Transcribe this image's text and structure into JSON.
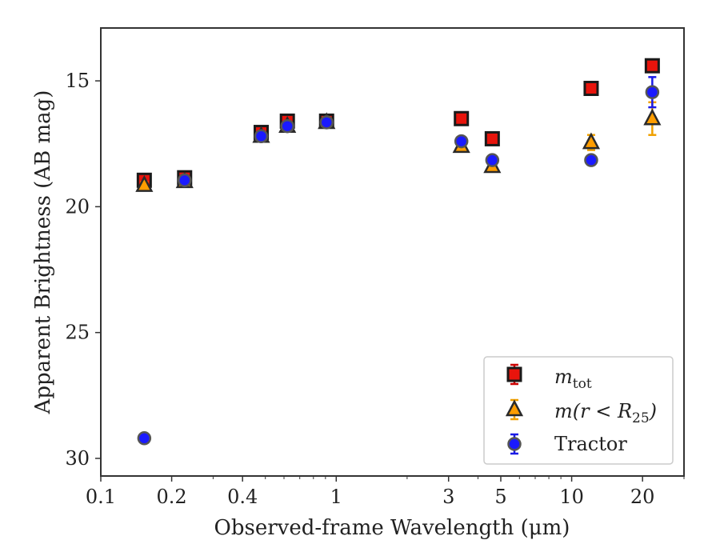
{
  "chart_data": {
    "type": "scatter",
    "xlabel": "Observed-frame Wavelength (μm)",
    "ylabel": "Apparent Brightness (AB mag)",
    "xscale": "log",
    "xlim": [
      0.1,
      30
    ],
    "ylim": [
      30.7,
      12.9
    ],
    "y_inverted": true,
    "x_ticks": [
      {
        "value": 0.1,
        "label": "0.1"
      },
      {
        "value": 0.2,
        "label": "0.2"
      },
      {
        "value": 0.4,
        "label": "0.4"
      },
      {
        "value": 1,
        "label": "1"
      },
      {
        "value": 3,
        "label": "3"
      },
      {
        "value": 5,
        "label": "5"
      },
      {
        "value": 10,
        "label": "10"
      },
      {
        "value": 20,
        "label": "20"
      }
    ],
    "y_ticks": [
      {
        "value": 15,
        "label": "15"
      },
      {
        "value": 20,
        "label": "20"
      },
      {
        "value": 25,
        "label": "25"
      },
      {
        "value": 30,
        "label": "30"
      }
    ],
    "grid": false,
    "legend_position": "lower-right",
    "series": [
      {
        "name": "m_tot",
        "legend_math": {
          "base": "m",
          "sub": "tot"
        },
        "marker": "square",
        "face_color": "#e8140c",
        "edge_color": "#1a1a1a",
        "error_color": "#cc0000",
        "points": [
          {
            "x": 0.153,
            "y": 18.95,
            "yerr": 0.15
          },
          {
            "x": 0.227,
            "y": 18.85,
            "yerr": 0.15
          },
          {
            "x": 0.48,
            "y": 17.05,
            "yerr": 0.06
          },
          {
            "x": 0.62,
            "y": 16.6,
            "yerr": 0.06
          },
          {
            "x": 0.91,
            "y": 16.6,
            "yerr": 0.05
          },
          {
            "x": 3.4,
            "y": 16.5,
            "yerr": 0.03
          },
          {
            "x": 4.6,
            "y": 17.3,
            "yerr": 0.03
          },
          {
            "x": 12.1,
            "y": 15.3,
            "yerr": 0.03
          },
          {
            "x": 22.0,
            "y": 14.4,
            "yerr": 0.03
          }
        ]
      },
      {
        "name": "m(r < R25)",
        "legend_math": {
          "base": "m(r < R",
          "sub": "25",
          "tail": ")"
        },
        "marker": "triangle",
        "face_color": "#ff9d00",
        "edge_color": "#2a2a2a",
        "error_color": "#f0a000",
        "points": [
          {
            "x": 0.153,
            "y": 19.15,
            "yerr": 0.1
          },
          {
            "x": 0.227,
            "y": 19.0,
            "yerr": 0.1
          },
          {
            "x": 0.48,
            "y": 17.2,
            "yerr": 0.05
          },
          {
            "x": 0.62,
            "y": 16.8,
            "yerr": 0.05
          },
          {
            "x": 0.91,
            "y": 16.65,
            "yerr": 0.05
          },
          {
            "x": 3.4,
            "y": 17.6,
            "yerr": 0.05
          },
          {
            "x": 4.6,
            "y": 18.4,
            "yerr": 0.08
          },
          {
            "x": 12.1,
            "y": 17.45,
            "yerr": 0.3
          },
          {
            "x": 22.0,
            "y": 16.5,
            "yerr": 0.65
          }
        ]
      },
      {
        "name": "Tractor",
        "legend_text": "Tractor",
        "marker": "circle",
        "face_color": "#1a1aff",
        "edge_color": "#555555",
        "error_color": "#1a1ae6",
        "points": [
          {
            "x": 0.153,
            "y": 29.2,
            "yerr": 0.05
          },
          {
            "x": 0.227,
            "y": 18.95,
            "yerr": 0.05
          },
          {
            "x": 0.48,
            "y": 17.2,
            "yerr": 0.05
          },
          {
            "x": 0.62,
            "y": 16.8,
            "yerr": 0.05
          },
          {
            "x": 0.91,
            "y": 16.65,
            "yerr": 0.05
          },
          {
            "x": 3.4,
            "y": 17.4,
            "yerr": 0.05
          },
          {
            "x": 4.6,
            "y": 18.15,
            "yerr": 0.05
          },
          {
            "x": 12.1,
            "y": 18.15,
            "yerr": 0.05
          },
          {
            "x": 22.0,
            "y": 15.45,
            "yerr": 0.6
          }
        ]
      }
    ]
  }
}
